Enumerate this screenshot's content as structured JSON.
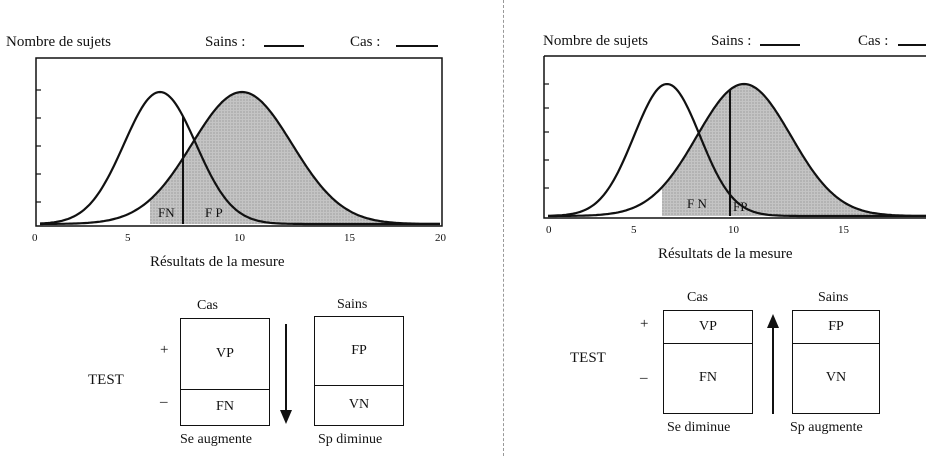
{
  "left": {
    "ylabel": "Nombre de sujets",
    "legend_sains": "Sains :",
    "legend_cas": "Cas :",
    "xlabel": "Résultats de la mesure",
    "x_ticks": [
      "0",
      "5",
      "10",
      "15",
      "20"
    ],
    "fn_label": "FN",
    "fp_label": "F P",
    "col_cas": "Cas",
    "col_sains": "Sains",
    "row_label": "TEST",
    "plus": "+",
    "minus": "–",
    "vp": "VP",
    "fn": "FN",
    "fp": "FP",
    "vn": "VN",
    "caption_se": "Se augmente",
    "caption_sp": "Sp  diminue"
  },
  "right": {
    "ylabel": "Nombre de sujets",
    "legend_sains": "Sains :",
    "legend_cas": "Cas :",
    "xlabel": "Résultats de la mesure",
    "x_ticks": [
      "0",
      "5",
      "10",
      "15"
    ],
    "fn_label": "F N",
    "fp_label": "FP",
    "col_cas": "Cas",
    "col_sains": "Sains",
    "row_label": "TEST",
    "plus": "+",
    "minus": "–",
    "vp": "VP",
    "fn": "FN",
    "fp": "FP",
    "vn": "VN",
    "caption_se": "Se diminue",
    "caption_sp": "Sp augmente"
  }
}
